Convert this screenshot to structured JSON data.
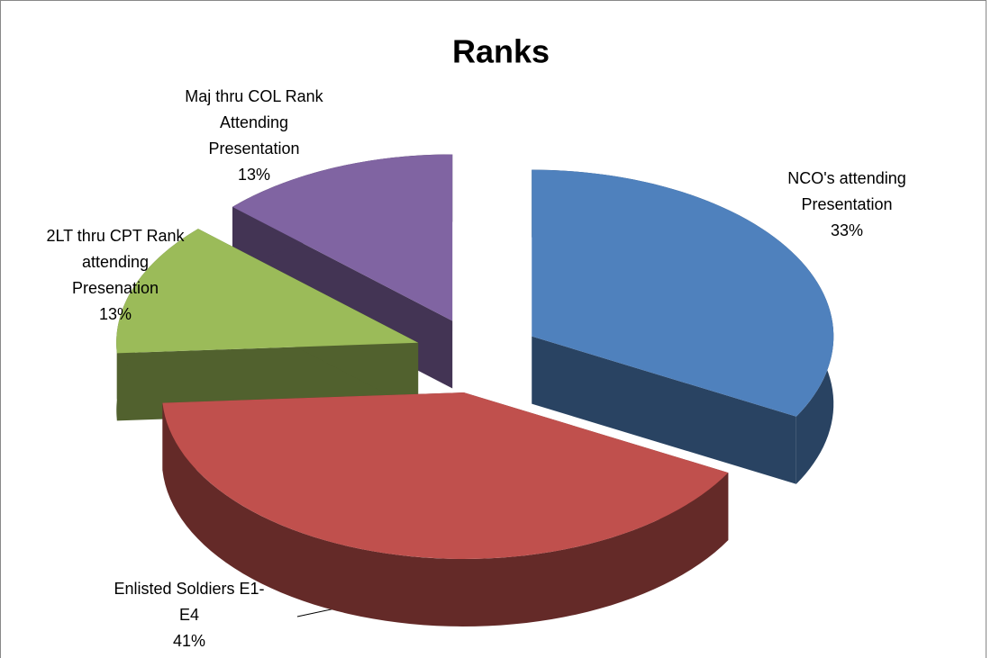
{
  "chart_data": {
    "type": "pie",
    "title": "Ranks",
    "categories": [
      "NCO's attending Presentation",
      "Enlisted Soldiers E1-E4",
      "2LT thru CPT Rank attending Presenation",
      "Maj thru COL Rank Attending Presentation"
    ],
    "values": [
      33,
      41,
      13,
      13
    ],
    "value_labels": [
      "33%",
      "41%",
      "13%",
      "13%"
    ],
    "colors": [
      "#4f81bd",
      "#c0504d",
      "#9bbb59",
      "#8064a2"
    ]
  }
}
